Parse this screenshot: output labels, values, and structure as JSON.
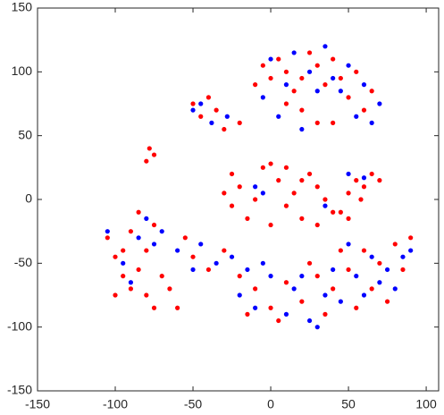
{
  "chart_data": {
    "type": "scatter",
    "xlim": [
      -150,
      108
    ],
    "ylim": [
      -150,
      150
    ],
    "xticks": [
      -150,
      -100,
      -50,
      0,
      50,
      100
    ],
    "yticks": [
      -150,
      -100,
      -50,
      0,
      50,
      100,
      150
    ],
    "grid": false,
    "series": [
      {
        "color": "#ff0000",
        "x": [
          -5,
          0,
          5,
          10,
          15,
          20,
          25,
          30,
          35,
          40,
          45,
          50,
          55,
          60,
          65,
          20,
          30,
          40,
          10,
          -10,
          -50,
          -45,
          -35,
          -30,
          -20,
          -40,
          -78,
          -75,
          -80,
          -30,
          -25,
          -20,
          -15,
          -10,
          -5,
          0,
          5,
          10,
          15,
          20,
          25,
          30,
          35,
          40,
          0,
          -25,
          10,
          30,
          20,
          45,
          50,
          55,
          60,
          65,
          70,
          50,
          58,
          -105,
          -100,
          -95,
          -90,
          -85,
          -80,
          -75,
          -100,
          -95,
          -90,
          -80,
          -70,
          -65,
          -85,
          -60,
          -75,
          -50,
          -40,
          -30,
          -20,
          -55,
          -10,
          0,
          10,
          20,
          30,
          35,
          40,
          50,
          55,
          60,
          65,
          70,
          75,
          80,
          85,
          90,
          45,
          25,
          -15,
          5
        ],
        "values": [
          105,
          95,
          110,
          100,
          85,
          95,
          115,
          105,
          90,
          110,
          95,
          80,
          100,
          70,
          85,
          70,
          60,
          60,
          75,
          90,
          75,
          65,
          70,
          55,
          60,
          80,
          40,
          35,
          30,
          5,
          -5,
          10,
          -15,
          0,
          25,
          28,
          15,
          -5,
          5,
          -15,
          20,
          10,
          0,
          -10,
          -20,
          20,
          25,
          -20,
          15,
          -10,
          5,
          15,
          10,
          20,
          15,
          -15,
          0,
          -30,
          -45,
          -60,
          -70,
          -55,
          -75,
          -85,
          -75,
          -40,
          -25,
          -40,
          -60,
          -70,
          -10,
          -85,
          -20,
          -45,
          -55,
          -40,
          -60,
          -30,
          -70,
          -85,
          -65,
          -80,
          -60,
          -90,
          -70,
          -55,
          -85,
          -40,
          -70,
          -50,
          -80,
          -35,
          -55,
          -30,
          -40,
          -50,
          -90,
          -95
        ]
      },
      {
        "color": "#0000ff",
        "x": [
          -5,
          0,
          10,
          15,
          25,
          30,
          35,
          45,
          50,
          55,
          60,
          65,
          70,
          20,
          5,
          40,
          -45,
          -38,
          -28,
          -50,
          -10,
          -5,
          35,
          50,
          60,
          -105,
          -95,
          -85,
          -75,
          -90,
          -70,
          -80,
          -60,
          -45,
          -35,
          -25,
          -15,
          -50,
          -5,
          -20,
          -10,
          0,
          10,
          15,
          25,
          30,
          35,
          40,
          45,
          55,
          60,
          65,
          70,
          75,
          80,
          85,
          90,
          50,
          20
        ],
        "values": [
          80,
          110,
          90,
          115,
          100,
          85,
          120,
          85,
          105,
          65,
          90,
          60,
          75,
          55,
          65,
          95,
          75,
          60,
          65,
          70,
          10,
          5,
          -5,
          20,
          17,
          -25,
          -50,
          -30,
          -35,
          -65,
          -25,
          -15,
          -40,
          -35,
          -50,
          -45,
          -55,
          -55,
          -50,
          -75,
          -85,
          -60,
          -90,
          -70,
          -95,
          -100,
          -75,
          -55,
          -80,
          -60,
          -75,
          -45,
          -65,
          -55,
          -70,
          -45,
          -40,
          -35,
          -60
        ]
      }
    ]
  }
}
